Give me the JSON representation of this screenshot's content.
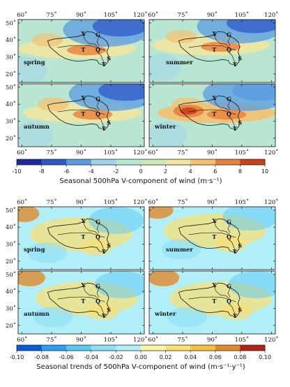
{
  "chart_data": [
    {
      "type": "heatmap",
      "title": "Seasonal 500hPa V-component of wind",
      "unit": "(m·s⁻¹)",
      "colorbar_range": [
        -10,
        10
      ],
      "colorbar_ticks": [
        "-10",
        "-8",
        "-6",
        "-4",
        "-2",
        "0",
        "2",
        "4",
        "6",
        "8",
        "10"
      ],
      "colors": [
        "#1c2a9a",
        "#2e58c8",
        "#5a9be0",
        "#9fd2ec",
        "#b8e6d2",
        "#cfe8b8",
        "#f0e6a0",
        "#f4c070",
        "#e8803c",
        "#c8401e"
      ],
      "x_ticks": [
        "60˚",
        "75˚",
        "90˚",
        "105˚",
        "120˚"
      ],
      "y_ticks": [
        "20˚",
        "30˚",
        "40˚",
        "50˚"
      ],
      "panels": [
        {
          "season": "spring"
        },
        {
          "season": "summer"
        },
        {
          "season": "autumn"
        },
        {
          "season": "winter"
        }
      ]
    },
    {
      "type": "heatmap",
      "title": "Seasonal trends of 500hPa V-component of wind",
      "unit": "(m·s⁻¹·y⁻¹)",
      "colorbar_range": [
        -0.1,
        0.1
      ],
      "colorbar_ticks": [
        "-0.10",
        "-0.08",
        "-0.06",
        "-0.04",
        "-0.02",
        "0.00",
        "0.02",
        "0.04",
        "0.06",
        "0.08",
        "0.10"
      ],
      "colors": [
        "#0a5ad8",
        "#2a9ef0",
        "#5cc8f4",
        "#8ee0f6",
        "#b0eef8",
        "#fff3a8",
        "#fde070",
        "#f6c040",
        "#e08a2a",
        "#b0241a"
      ],
      "x_ticks": [
        "60˚",
        "75˚",
        "90˚",
        "105˚",
        "120˚"
      ],
      "y_ticks": [
        "20˚",
        "30˚",
        "40˚",
        "50˚"
      ],
      "panels": [
        {
          "season": "spring"
        },
        {
          "season": "summer"
        },
        {
          "season": "autumn"
        },
        {
          "season": "winter"
        }
      ]
    }
  ],
  "region_labels": [
    "X",
    "G",
    "T",
    "Q",
    "S",
    "Y"
  ]
}
